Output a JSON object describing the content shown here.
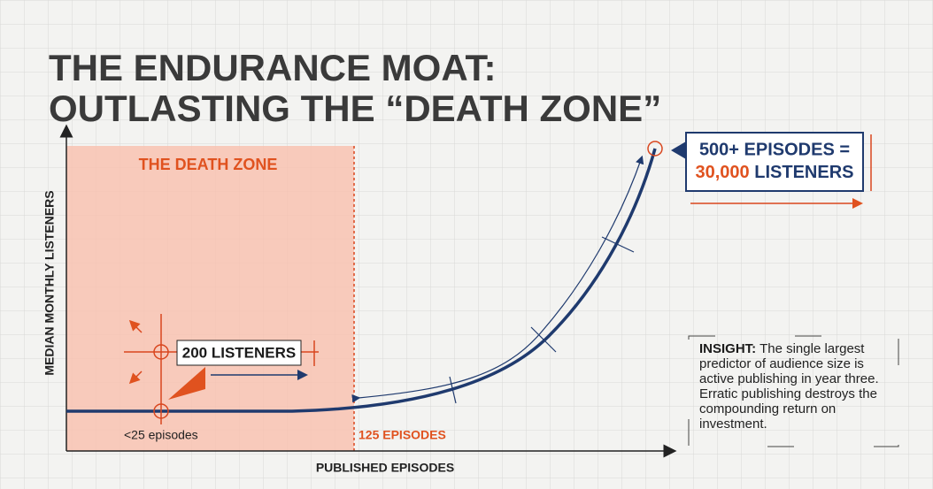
{
  "title": {
    "line1": "THE ENDURANCE MOAT:",
    "line2": "OUTLASTING THE “DEATH ZONE”"
  },
  "y_axis_label": "MEDIAN MONTHLY LISTENERS",
  "x_axis_label": "PUBLISHED EPISODES",
  "death_zone": {
    "label": "THE DEATH ZONE",
    "start_label": "<25 episodes",
    "end_label": "125 EPISODES"
  },
  "start_callout": "200 LISTENERS",
  "end_callout": {
    "line1": "500+ EPISODES =",
    "number": "30,000",
    "unit": "LISTENERS"
  },
  "insight": {
    "heading": "INSIGHT:",
    "text": "The single largest predictor of audience size is active publishing in year three. Erratic publishing destroys the compounding return on investment."
  }
}
